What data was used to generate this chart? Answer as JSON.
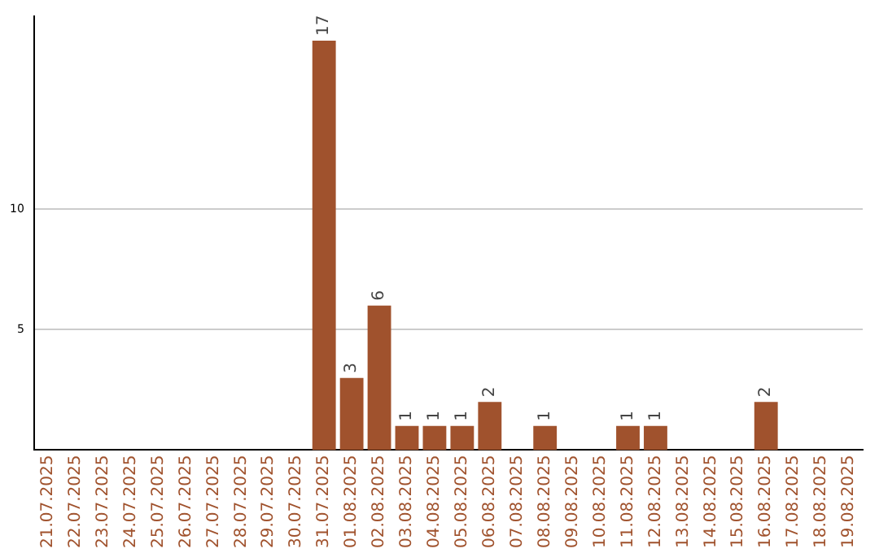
{
  "chart_data": {
    "type": "bar",
    "categories": [
      "21.07.2025",
      "22.07.2025",
      "23.07.2025",
      "24.07.2025",
      "25.07.2025",
      "26.07.2025",
      "27.07.2025",
      "28.07.2025",
      "29.07.2025",
      "30.07.2025",
      "31.07.2025",
      "01.08.2025",
      "02.08.2025",
      "03.08.2025",
      "04.08.2025",
      "05.08.2025",
      "06.08.2025",
      "07.08.2025",
      "08.08.2025",
      "09.08.2025",
      "10.08.2025",
      "11.08.2025",
      "12.08.2025",
      "13.08.2025",
      "14.08.2025",
      "15.08.2025",
      "16.08.2025",
      "17.08.2025",
      "18.08.2025",
      "19.08.2025"
    ],
    "values": [
      0,
      0,
      0,
      0,
      0,
      0,
      0,
      0,
      0,
      0,
      17,
      3,
      6,
      1,
      1,
      1,
      2,
      0,
      1,
      0,
      0,
      1,
      1,
      0,
      0,
      0,
      2,
      0,
      0,
      0
    ],
    "value_labels": [
      null,
      null,
      null,
      null,
      null,
      null,
      null,
      null,
      null,
      null,
      "17",
      "3",
      "6",
      "1",
      "1",
      "1",
      "2",
      null,
      "1",
      null,
      null,
      "1",
      "1",
      null,
      null,
      null,
      "2",
      null,
      null,
      null
    ],
    "color": "#a0522d",
    "ylim": [
      0,
      18
    ],
    "yticks": [
      5,
      10
    ],
    "grid": "y",
    "legend": false
  }
}
